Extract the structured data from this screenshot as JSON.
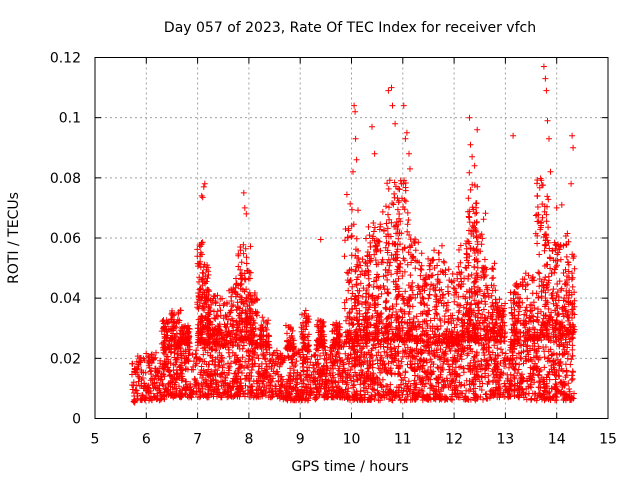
{
  "chart_data": {
    "type": "scatter",
    "title": "Day 057 of 2023, Rate Of TEC Index for receiver vfch",
    "xlabel": "GPS time / hours",
    "ylabel": "ROTI / TECUs",
    "xlim": [
      5,
      15
    ],
    "ylim": [
      0,
      0.12
    ],
    "xticks": [
      "5",
      "6",
      "7",
      "8",
      "9",
      "10",
      "11",
      "12",
      "13",
      "14",
      "15"
    ],
    "yticks": [
      "0",
      "0.02",
      "0.04",
      "0.06",
      "0.08",
      "0.1",
      "0.12"
    ],
    "grid": true,
    "marker": "+",
    "color": "#ff0000",
    "time_range": [
      5.72,
      14.35
    ],
    "baseline_band": [
      [
        5.75,
        0.005,
        0.021
      ],
      [
        6.0,
        0.006,
        0.022
      ],
      [
        6.25,
        0.006,
        0.022
      ],
      [
        6.5,
        0.007,
        0.024
      ],
      [
        6.75,
        0.007,
        0.025
      ],
      [
        7.0,
        0.007,
        0.025
      ],
      [
        7.25,
        0.007,
        0.025
      ],
      [
        7.5,
        0.007,
        0.024
      ],
      [
        7.75,
        0.007,
        0.026
      ],
      [
        8.0,
        0.007,
        0.026
      ],
      [
        8.25,
        0.007,
        0.024
      ],
      [
        8.5,
        0.007,
        0.023
      ],
      [
        8.75,
        0.006,
        0.023
      ],
      [
        9.0,
        0.006,
        0.023
      ],
      [
        9.25,
        0.006,
        0.023
      ],
      [
        9.5,
        0.007,
        0.024
      ],
      [
        9.75,
        0.007,
        0.024
      ],
      [
        10.0,
        0.006,
        0.026
      ],
      [
        10.25,
        0.006,
        0.026
      ],
      [
        10.5,
        0.006,
        0.026
      ],
      [
        10.75,
        0.006,
        0.026
      ],
      [
        11.0,
        0.006,
        0.026
      ],
      [
        11.25,
        0.006,
        0.026
      ],
      [
        11.5,
        0.006,
        0.025
      ],
      [
        11.75,
        0.006,
        0.025
      ],
      [
        12.0,
        0.006,
        0.025
      ],
      [
        12.25,
        0.006,
        0.026
      ],
      [
        12.5,
        0.006,
        0.026
      ],
      [
        12.75,
        0.007,
        0.026
      ],
      [
        13.0,
        0.007,
        0.025
      ],
      [
        13.25,
        0.007,
        0.026
      ],
      [
        13.5,
        0.006,
        0.026
      ],
      [
        13.75,
        0.006,
        0.027
      ],
      [
        14.0,
        0.006,
        0.027
      ],
      [
        14.25,
        0.006,
        0.028
      ]
    ],
    "activity_clusters": [
      [
        6.4,
        0.1,
        0.033
      ],
      [
        6.6,
        0.12,
        0.036
      ],
      [
        6.75,
        0.1,
        0.031
      ],
      [
        7.05,
        0.06,
        0.059
      ],
      [
        7.15,
        0.08,
        0.052
      ],
      [
        7.3,
        0.1,
        0.041
      ],
      [
        7.5,
        0.12,
        0.04
      ],
      [
        7.75,
        0.14,
        0.047
      ],
      [
        7.9,
        0.14,
        0.058
      ],
      [
        8.05,
        0.12,
        0.042
      ],
      [
        8.3,
        0.1,
        0.034
      ],
      [
        8.8,
        0.08,
        0.031
      ],
      [
        9.1,
        0.08,
        0.036
      ],
      [
        9.4,
        0.08,
        0.033
      ],
      [
        9.7,
        0.08,
        0.032
      ],
      [
        10.0,
        0.14,
        0.075
      ],
      [
        10.2,
        0.14,
        0.056
      ],
      [
        10.4,
        0.14,
        0.065
      ],
      [
        10.6,
        0.14,
        0.07
      ],
      [
        10.8,
        0.14,
        0.08
      ],
      [
        11.0,
        0.14,
        0.085
      ],
      [
        11.2,
        0.12,
        0.06
      ],
      [
        11.45,
        0.12,
        0.055
      ],
      [
        11.7,
        0.12,
        0.058
      ],
      [
        11.95,
        0.12,
        0.05
      ],
      [
        12.2,
        0.12,
        0.06
      ],
      [
        12.35,
        0.12,
        0.082
      ],
      [
        12.5,
        0.12,
        0.07
      ],
      [
        12.7,
        0.12,
        0.052
      ],
      [
        12.9,
        0.1,
        0.04
      ],
      [
        13.2,
        0.1,
        0.045
      ],
      [
        13.45,
        0.12,
        0.05
      ],
      [
        13.7,
        0.14,
        0.08
      ],
      [
        13.9,
        0.14,
        0.06
      ],
      [
        14.1,
        0.14,
        0.062
      ],
      [
        14.3,
        0.12,
        0.055
      ]
    ],
    "high_points": [
      [
        7.08,
        0.074
      ],
      [
        7.1,
        0.0735
      ],
      [
        7.12,
        0.077
      ],
      [
        7.14,
        0.078
      ],
      [
        7.9,
        0.075
      ],
      [
        7.92,
        0.07
      ],
      [
        7.95,
        0.068
      ],
      [
        9.4,
        0.0595
      ],
      [
        10.05,
        0.104
      ],
      [
        10.07,
        0.102
      ],
      [
        10.08,
        0.093
      ],
      [
        10.1,
        0.086
      ],
      [
        10.03,
        0.082
      ],
      [
        10.4,
        0.097
      ],
      [
        10.45,
        0.088
      ],
      [
        10.72,
        0.109
      ],
      [
        10.78,
        0.11
      ],
      [
        10.8,
        0.104
      ],
      [
        10.85,
        0.098
      ],
      [
        11.02,
        0.104
      ],
      [
        11.05,
        0.093
      ],
      [
        11.08,
        0.095
      ],
      [
        11.12,
        0.088
      ],
      [
        12.3,
        0.1
      ],
      [
        12.32,
        0.091
      ],
      [
        12.35,
        0.087
      ],
      [
        12.4,
        0.084
      ],
      [
        12.45,
        0.096
      ],
      [
        13.15,
        0.094
      ],
      [
        13.75,
        0.117
      ],
      [
        13.78,
        0.113
      ],
      [
        13.8,
        0.109
      ],
      [
        13.82,
        0.099
      ],
      [
        13.85,
        0.093
      ],
      [
        13.88,
        0.082
      ],
      [
        14.3,
        0.094
      ],
      [
        14.32,
        0.09
      ],
      [
        14.28,
        0.078
      ],
      [
        14.1,
        0.071
      ],
      [
        14.0,
        0.07
      ]
    ]
  }
}
